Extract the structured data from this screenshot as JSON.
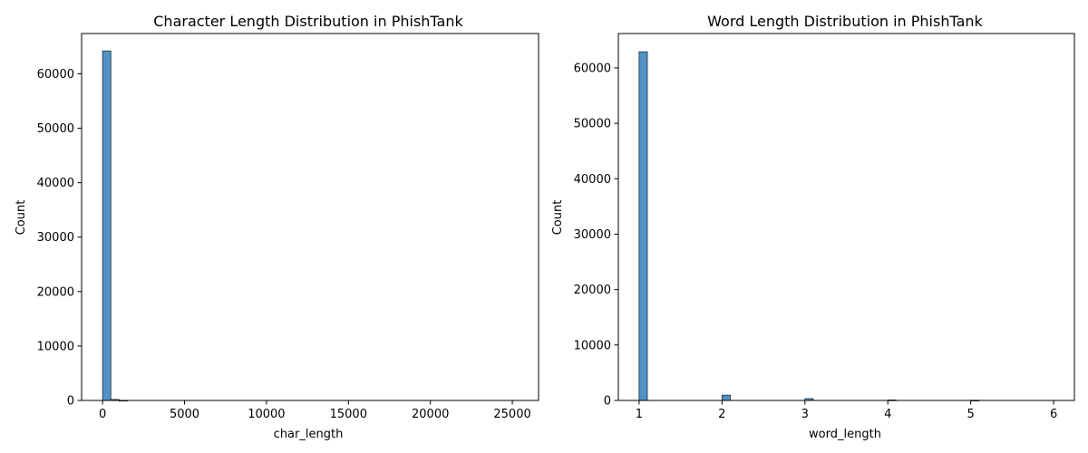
{
  "chart_data": [
    {
      "type": "histogram",
      "title": "Character Length Distribution in PhishTank",
      "xlabel": "char_length",
      "ylabel": "Count",
      "xlim": [
        -1280,
        26600
      ],
      "ylim": [
        0,
        67400
      ],
      "xticks": [
        0,
        5000,
        10000,
        15000,
        20000,
        25000
      ],
      "yticks": [
        0,
        10000,
        20000,
        30000,
        40000,
        50000,
        60000
      ],
      "bin_width": 505,
      "bins": [
        {
          "start": 0,
          "count": 64200
        },
        {
          "start": 505,
          "count": 180
        },
        {
          "start": 1010,
          "count": 20
        }
      ],
      "bar_color": "#5192c4",
      "edge_color": "#1f2f3f"
    },
    {
      "type": "histogram",
      "title": "Word Length Distribution in PhishTank",
      "xlabel": "word_length",
      "ylabel": "Count",
      "xlim": [
        0.75,
        6.25
      ],
      "ylim": [
        0,
        66200
      ],
      "xticks": [
        1,
        2,
        3,
        4,
        5,
        6
      ],
      "yticks": [
        0,
        10000,
        20000,
        30000,
        40000,
        50000,
        60000
      ],
      "bin_width": 0.1,
      "bins": [
        {
          "start": 1.0,
          "count": 62900
        },
        {
          "start": 2.0,
          "count": 950
        },
        {
          "start": 3.0,
          "count": 330
        },
        {
          "start": 4.0,
          "count": 90
        },
        {
          "start": 5.0,
          "count": 40
        }
      ],
      "bar_color": "#5192c4",
      "edge_color": "#1f2f3f"
    }
  ]
}
